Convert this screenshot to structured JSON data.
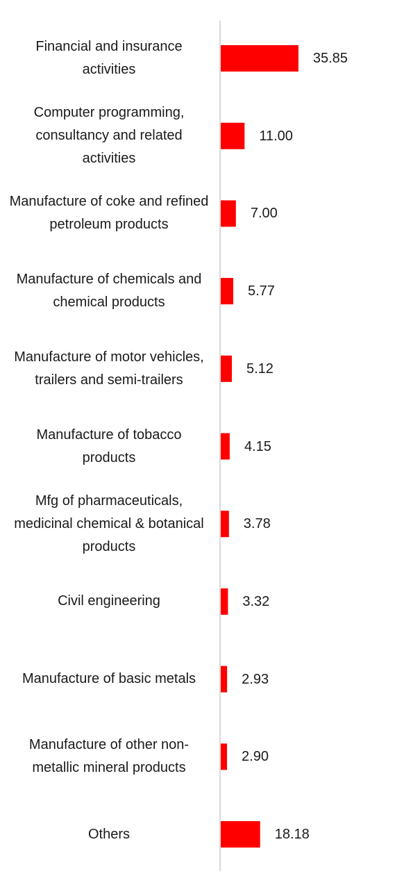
{
  "chart_data": {
    "type": "bar",
    "orientation": "horizontal",
    "categories": [
      "Financial and insurance activities",
      "Computer programming, consultancy and related activities",
      "Manufacture of coke and refined petroleum products",
      "Manufacture of chemicals and chemical products",
      "Manufacture of motor vehicles, trailers and semi-trailers",
      "Manufacture of tobacco products",
      "Mfg of pharmaceuticals, medicinal chemical & botanical products",
      "Civil engineering",
      "Manufacture of basic metals",
      "Manufacture of other non-metallic mineral products",
      "Others"
    ],
    "values": [
      35.85,
      11.0,
      7.0,
      5.77,
      5.12,
      4.15,
      3.78,
      3.32,
      2.93,
      2.9,
      18.18
    ],
    "data_labels": [
      "35.85",
      "11.00",
      "7.00",
      "5.77",
      "5.12",
      "4.15",
      "3.78",
      "3.32",
      "2.93",
      "2.90",
      "18.18"
    ],
    "title": "",
    "xlabel": "",
    "ylabel": "",
    "xlim": [
      0,
      100
    ],
    "grid": false,
    "legend": "none",
    "bar_color": "#ff0000",
    "axis_color": "#d9d9d9"
  }
}
